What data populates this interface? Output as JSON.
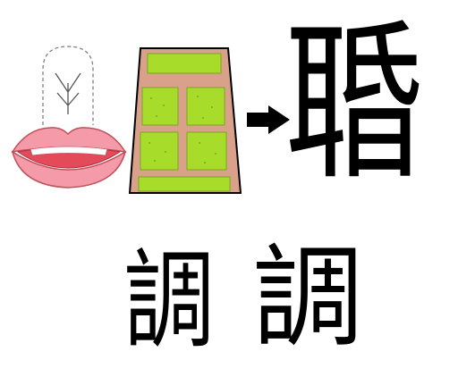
{
  "figure": {
    "result_character": "䎽",
    "seal_script_character": "調",
    "regular_script_character": "調"
  },
  "icons": {
    "mouth": "mouth-with-tongue-sprout-icon",
    "field": "trapezoid-field-with-plots-icon",
    "arrow": "right-arrow-icon"
  },
  "colors": {
    "lips": "#f49aa8",
    "lip_outline": "#c0505a",
    "mouth_inside": "#e34a5a",
    "teeth": "#ffffff",
    "field_bg": "#d9a08a",
    "plot_green": "#a7dc2b",
    "outline": "#000000"
  }
}
